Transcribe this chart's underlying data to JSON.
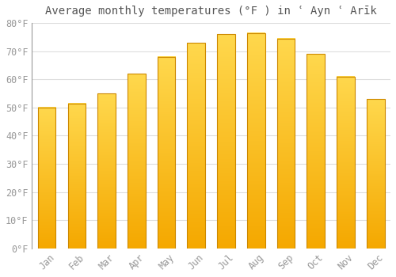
{
  "title": "Average monthly temperatures (°F ) in ʿ Ayn ʿ Arīk",
  "months": [
    "Jan",
    "Feb",
    "Mar",
    "Apr",
    "May",
    "Jun",
    "Jul",
    "Aug",
    "Sep",
    "Oct",
    "Nov",
    "Dec"
  ],
  "values": [
    50,
    51.5,
    55,
    62,
    68,
    73,
    76,
    76.5,
    74.5,
    69,
    61,
    53
  ],
  "bar_color_top": "#FFD84D",
  "bar_color_bottom": "#F5A800",
  "bar_edge_color": "#CC8800",
  "background_color": "#FFFFFF",
  "grid_color": "#DDDDDD",
  "ylim": [
    0,
    80
  ],
  "yticks": [
    0,
    10,
    20,
    30,
    40,
    50,
    60,
    70,
    80
  ],
  "title_fontsize": 10,
  "tick_fontsize": 8.5,
  "tick_color": "#999999",
  "title_color": "#555555"
}
